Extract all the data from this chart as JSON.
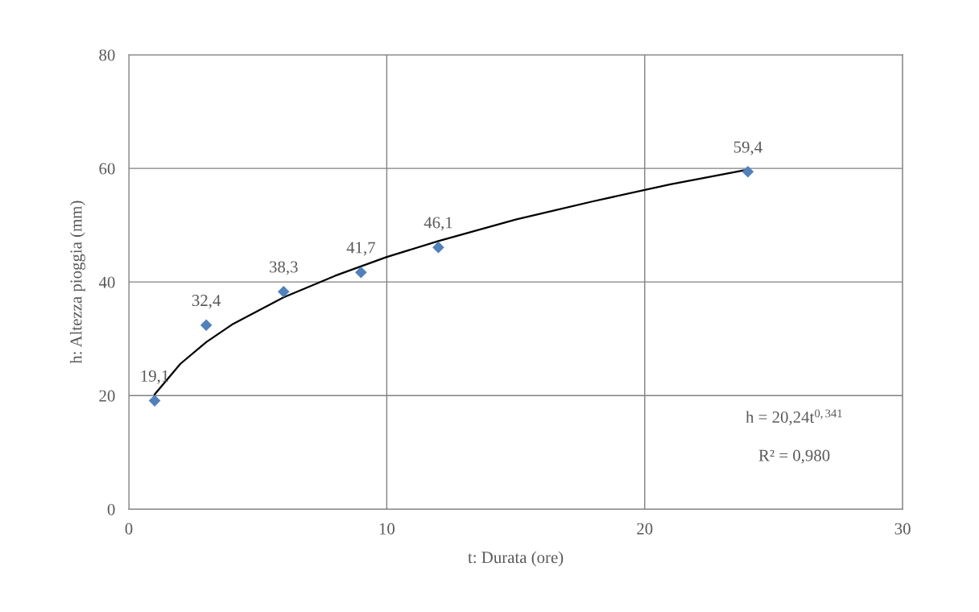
{
  "chart_data": {
    "type": "scatter",
    "xlabel": "t: Durata (ore)",
    "ylabel": "h: Altezza pioggia (mm)",
    "xlim": [
      0,
      30
    ],
    "xticks": [
      0,
      10,
      20,
      30
    ],
    "ylim": [
      0,
      80
    ],
    "yticks": [
      0,
      20,
      40,
      60,
      80
    ],
    "grid": true,
    "marker": "diamond",
    "series": [
      {
        "color": "#4f81bd",
        "x": [
          1,
          3,
          6,
          9,
          12,
          24
        ],
        "values": [
          19.1,
          32.4,
          38.3,
          41.7,
          46.1,
          59.4
        ],
        "value_labels": [
          "19,1",
          "32,4",
          "38,3",
          "41,7",
          "46,1",
          "59,4"
        ]
      },
      {
        "type": "line",
        "color": "#000000",
        "marker": "none",
        "x": [
          1,
          2,
          3,
          4,
          6,
          8,
          10,
          12,
          15,
          18,
          21,
          24
        ],
        "values": [
          20.2,
          25.6,
          29.4,
          32.5,
          37.3,
          41.1,
          44.4,
          47.2,
          51.0,
          54.2,
          57.2,
          59.8
        ]
      }
    ],
    "annotations": [
      "h = 20,24t$^{0,341}$",
      "R² = 0,980"
    ]
  }
}
